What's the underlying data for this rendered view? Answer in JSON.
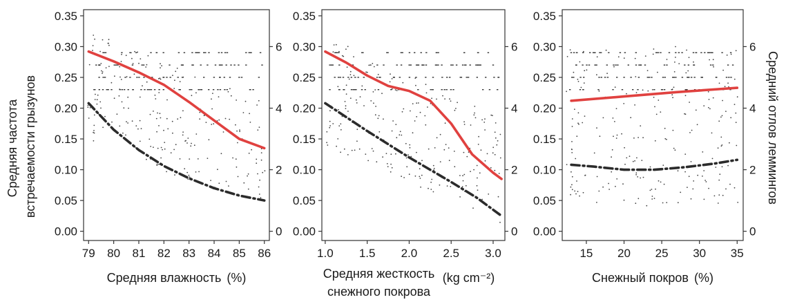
{
  "y_left_label": [
    "Средняя частота",
    "встречаемости грызунов"
  ],
  "y_right_label": "Средний отлов леммингов",
  "chart_data": [
    {
      "type": "scatter",
      "xlabel": "Средняя влажность",
      "xlabel_unit": "(%)",
      "xlim": [
        78.8,
        86.2
      ],
      "x_ticks": [
        79,
        80,
        81,
        82,
        83,
        84,
        85,
        86
      ],
      "ylim_left": [
        -0.015,
        0.36
      ],
      "y_ticks_left": [
        0.0,
        0.05,
        0.1,
        0.15,
        0.2,
        0.25,
        0.3,
        0.35
      ],
      "ylim_right": [
        -0.3,
        7.2
      ],
      "y_ticks_right": [
        0,
        2,
        4,
        6
      ],
      "series": [
        {
          "style": "solid",
          "color": "#e0413f",
          "axis": "left",
          "x": [
            79.0,
            80.0,
            81.0,
            82.0,
            83.0,
            84.0,
            85.0,
            86.0
          ],
          "y": [
            0.292,
            0.276,
            0.258,
            0.238,
            0.21,
            0.18,
            0.15,
            0.135
          ]
        },
        {
          "style": "dashdot",
          "color": "#2b2b2b",
          "axis": "left",
          "x": [
            79.0,
            80.0,
            81.0,
            82.0,
            83.0,
            84.0,
            85.0,
            86.0
          ],
          "y": [
            0.208,
            0.165,
            0.132,
            0.106,
            0.086,
            0.07,
            0.058,
            0.05
          ]
        }
      ]
    },
    {
      "type": "scatter",
      "xlabel": "Средняя жесткость",
      "xlabel_line2": "снежного покрова",
      "xlabel_unit": "(kg cm⁻²)",
      "xlim": [
        0.96,
        3.14
      ],
      "x_ticks": [
        "1.0",
        "1.5",
        "2.0",
        "2.5",
        "3.0"
      ],
      "ylim_left": [
        -0.015,
        0.36
      ],
      "y_ticks_left": [
        0.0,
        0.05,
        0.1,
        0.15,
        0.2,
        0.25,
        0.3,
        0.35
      ],
      "ylim_right": [
        -0.3,
        7.2
      ],
      "y_ticks_right": [
        0,
        2,
        4,
        6
      ],
      "series": [
        {
          "style": "solid",
          "color": "#e0413f",
          "axis": "left",
          "x": [
            1.0,
            1.25,
            1.5,
            1.75,
            2.0,
            2.25,
            2.5,
            2.75,
            3.0,
            3.1
          ],
          "y": [
            0.292,
            0.274,
            0.253,
            0.236,
            0.228,
            0.212,
            0.175,
            0.125,
            0.095,
            0.085
          ]
        },
        {
          "style": "dashdot",
          "color": "#2b2b2b",
          "axis": "left",
          "x": [
            1.0,
            1.5,
            2.0,
            2.5,
            2.8,
            3.1
          ],
          "y": [
            0.208,
            0.163,
            0.12,
            0.08,
            0.055,
            0.025
          ]
        }
      ]
    },
    {
      "type": "scatter",
      "xlabel": "Снежный покров",
      "xlabel_unit": "(%)",
      "xlim": [
        11.8,
        35.8
      ],
      "x_ticks": [
        15,
        20,
        25,
        30,
        35
      ],
      "ylim_left": [
        -0.015,
        0.36
      ],
      "y_ticks_left": [
        0.0,
        0.05,
        0.1,
        0.15,
        0.2,
        0.25,
        0.3,
        0.35
      ],
      "ylim_right": [
        -0.3,
        7.2
      ],
      "y_ticks_right": [
        0,
        2,
        4,
        6
      ],
      "series": [
        {
          "style": "solid",
          "color": "#e0413f",
          "axis": "left",
          "x": [
            13.0,
            20.0,
            27.0,
            35.0
          ],
          "y": [
            0.212,
            0.219,
            0.226,
            0.233
          ]
        },
        {
          "style": "dashdot",
          "color": "#2b2b2b",
          "axis": "left",
          "x": [
            13.0,
            16.0,
            20.0,
            24.0,
            28.0,
            32.0,
            35.0
          ],
          "y": [
            0.108,
            0.105,
            0.1,
            0.1,
            0.104,
            0.11,
            0.116
          ]
        }
      ]
    }
  ]
}
